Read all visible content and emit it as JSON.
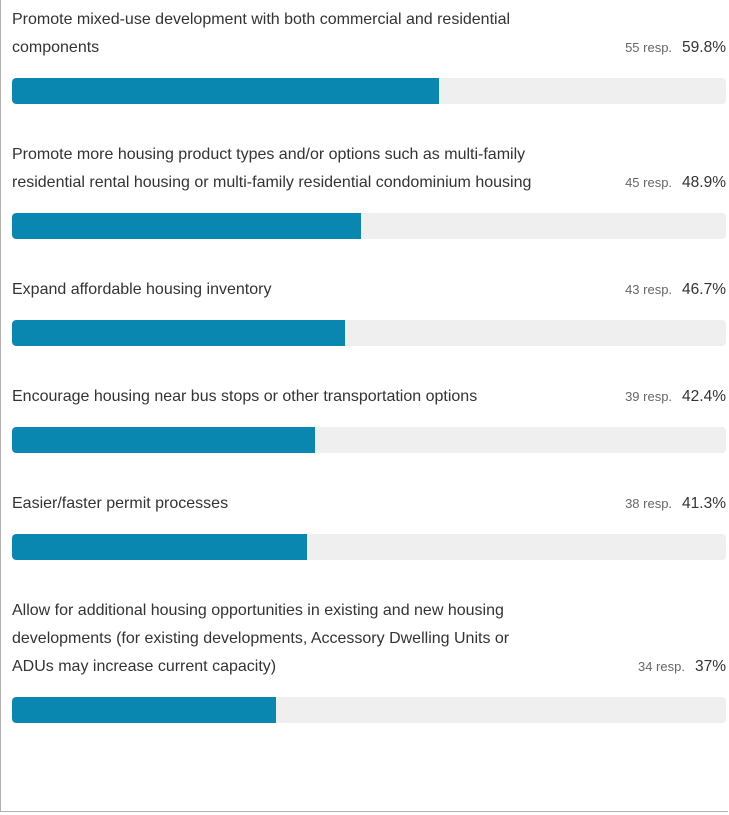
{
  "chart_data": {
    "type": "bar",
    "orientation": "horizontal",
    "categories": [
      "Promote mixed-use development with both commercial and residential components",
      "Promote more housing product types and/or options such as multi-family residential rental housing or multi-family residential condominium housing",
      "Expand affordable housing inventory",
      "Encourage housing near bus stops or other transportation options",
      "Easier/faster permit processes",
      "Allow for additional housing opportunities in existing and new housing developments (for existing developments, Accessory Dwelling Units or ADUs may increase current capacity)"
    ],
    "values": [
      59.8,
      48.9,
      46.7,
      42.4,
      41.3,
      37
    ],
    "value_labels": [
      "59.8%",
      "48.9%",
      "46.7%",
      "42.4%",
      "41.3%",
      "37%"
    ],
    "response_labels": [
      "55 resp.",
      "45 resp.",
      "43 resp.",
      "39 resp.",
      "38 resp.",
      "34 resp."
    ],
    "xlim": [
      0,
      100
    ],
    "color": "#0a87b0",
    "track_color": "#efefef"
  }
}
